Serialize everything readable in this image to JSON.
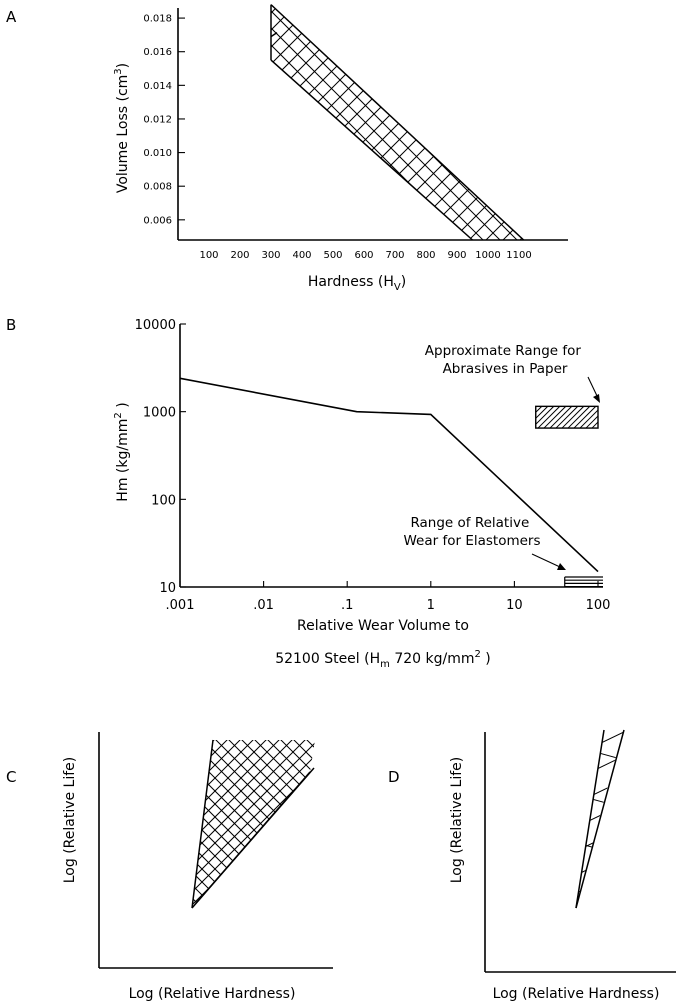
{
  "chart_data": [
    {
      "panel": "A",
      "type": "area",
      "xlabel": "Hardness (H",
      "xlabel_sub": "V",
      "xlabel_close": ")",
      "ylabel": "Volume Loss (cm",
      "ylabel_sup": "3",
      "ylabel_close": ")",
      "xlim": [
        0,
        1250
      ],
      "ylim": [
        0.0048,
        0.0186
      ],
      "x_ticks": [
        100,
        200,
        300,
        400,
        500,
        600,
        700,
        800,
        900,
        1000,
        1100
      ],
      "x_tick_labels": [
        "100",
        "200",
        "300",
        "400",
        "500",
        "600",
        "700",
        "800",
        "900",
        "1000",
        "1100"
      ],
      "y_ticks": [
        0.006,
        0.008,
        0.01,
        0.012,
        0.014,
        0.016,
        0.018
      ],
      "y_tick_labels": [
        "0.006",
        "0.008",
        "0.010",
        "0.012",
        "0.014",
        "0.016",
        "0.018"
      ],
      "band_upper": [
        [
          300,
          0.0188
        ],
        [
          300,
          0.0169
        ],
        [
          1115,
          0.0048
        ]
      ],
      "band_lower": [
        [
          300,
          0.0169
        ],
        [
          300,
          0.0155
        ],
        [
          950,
          0.0048
        ]
      ],
      "band_fill": "crosshatch"
    },
    {
      "panel": "B",
      "type": "line",
      "x_scale": "log",
      "y_scale": "log",
      "xlabel_line1": "Relative Wear Volume to",
      "xlabel_line2": "52100 Steel (H",
      "xlabel_line2_sub": "m",
      "xlabel_line2_mid": " 720 kg/mm",
      "xlabel_line2_sup": "2",
      "xlabel_line2_close": " )",
      "ylabel": "Hm (kg/mm",
      "ylabel_sup": "2",
      "ylabel_close": " )",
      "xlim": [
        0.001,
        100
      ],
      "ylim": [
        10,
        10000
      ],
      "x_tick_labels": [
        ".001",
        ".01",
        ".1",
        "1",
        "10",
        "100"
      ],
      "y_tick_labels": [
        "10",
        "100",
        "1000",
        "10000"
      ],
      "series": [
        {
          "x": [
            0.001,
            0.13,
            1,
            100
          ],
          "y": [
            2400,
            1000,
            930,
            15
          ]
        }
      ],
      "regions": [
        {
          "label_line1": "Approximate Range for",
          "label_line2": "Abrasives in Paper",
          "x_range": [
            18,
            100
          ],
          "y_range": [
            650,
            1150
          ],
          "fill": "hatch"
        },
        {
          "label_line1": "Range of Relative",
          "label_line2": "Wear for Elastomers",
          "x_range": [
            40,
            100
          ],
          "y_range": [
            10,
            13
          ],
          "fill": "lines"
        }
      ]
    },
    {
      "panel": "C",
      "type": "area",
      "xlabel": "Log (Relative Hardness)",
      "ylabel": "Log (Relative Life)",
      "band_fill": "crosshatch"
    },
    {
      "panel": "D",
      "type": "area",
      "xlabel": "Log (Relative Hardness)",
      "ylabel": "Log (Relative Life)",
      "band_fill": "hatch"
    }
  ]
}
